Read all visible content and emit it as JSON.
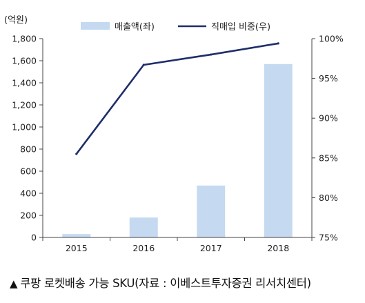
{
  "chart_data": {
    "type": "bar+line",
    "categories": [
      "2015",
      "2016",
      "2017",
      "2018"
    ],
    "left_axis": {
      "unit_label": "(억원)",
      "ticks": [
        "0",
        "200",
        "400",
        "600",
        "800",
        "1,000",
        "1,200",
        "1,400",
        "1,600",
        "1,800"
      ],
      "ylim": [
        0,
        1800
      ]
    },
    "right_axis": {
      "ticks": [
        "75%",
        "80%",
        "85%",
        "90%",
        "95%",
        "100%"
      ],
      "ylim": [
        75,
        100
      ]
    },
    "series": [
      {
        "name": "매출액(좌)",
        "type": "bar",
        "axis": "left",
        "values": [
          30,
          180,
          470,
          1570
        ]
      },
      {
        "name": "직매입 비중(우)",
        "type": "line",
        "axis": "right",
        "values": [
          85.5,
          96.7,
          98.0,
          99.4
        ]
      }
    ],
    "legend": "top",
    "colors": {
      "bar": "#c5d9f1",
      "line": "#1f2d6b",
      "axis": "#444444"
    }
  },
  "caption": {
    "icon": "triangle-up-icon",
    "text": "쿠팡 로켓배송 가능 SKU(자료 : 이베스트투자증권 리서치센터)"
  }
}
